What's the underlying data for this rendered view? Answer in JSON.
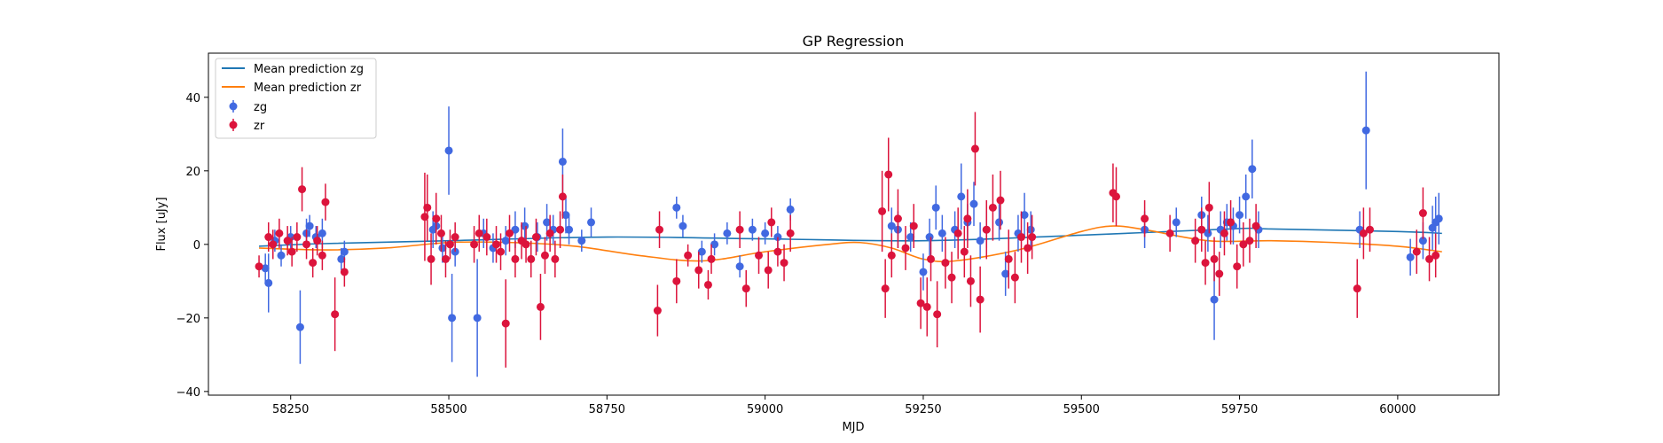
{
  "chart_data": {
    "type": "scatter",
    "title": "GP Regression",
    "xlabel": "MJD",
    "ylabel": "Flux [uJy]",
    "xlim": [
      58120,
      60160
    ],
    "ylim": [
      -41,
      52
    ],
    "xticks": [
      58250,
      58500,
      58750,
      59000,
      59250,
      59500,
      59750,
      60000
    ],
    "yticks": [
      -40,
      -20,
      0,
      20,
      40
    ],
    "grid": false,
    "legend_position": "upper-left",
    "colors": {
      "zg_line": "#1f77b4",
      "zr_line": "#ff7f0e",
      "zg_points": "#4169e1",
      "zr_points": "#dc143c"
    },
    "lines": [
      {
        "name": "Mean prediction zg",
        "x": [
          58200,
          58300,
          58500,
          58750,
          59000,
          59250,
          59500,
          59750,
          59800,
          60000,
          60070
        ],
        "y": [
          -0.5,
          0.2,
          1.0,
          2.0,
          1.5,
          1.0,
          2.5,
          4.3,
          4.2,
          3.5,
          3.0
        ]
      },
      {
        "name": "Mean prediction zr",
        "x": [
          58200,
          58300,
          58400,
          58500,
          58600,
          58700,
          58800,
          58900,
          59000,
          59100,
          59150,
          59200,
          59250,
          59300,
          59400,
          59500,
          59550,
          59600,
          59700,
          59800,
          59900,
          60000,
          60070
        ],
        "y": [
          -1.0,
          -1.5,
          -1.0,
          0.5,
          0.5,
          -0.5,
          -3.0,
          -4.5,
          -2.0,
          0.0,
          0.5,
          -1.0,
          -4.0,
          -4.5,
          -1.5,
          3.5,
          5.0,
          4.0,
          1.0,
          1.0,
          0.5,
          -0.5,
          -2.0
        ]
      }
    ],
    "series": [
      {
        "name": "zg",
        "x": [
          58210,
          58215,
          58225,
          58235,
          58250,
          58265,
          58275,
          58280,
          58290,
          58300,
          58330,
          58335,
          58475,
          58480,
          58490,
          58500,
          58505,
          58510,
          58545,
          58555,
          58570,
          58590,
          58605,
          58620,
          58640,
          58655,
          58665,
          58680,
          58685,
          58690,
          58710,
          58725,
          58860,
          58870,
          58900,
          58920,
          58940,
          58960,
          58980,
          59000,
          59020,
          59040,
          59200,
          59210,
          59230,
          59250,
          59260,
          59270,
          59280,
          59300,
          59310,
          59320,
          59330,
          59340,
          59350,
          59370,
          59380,
          59400,
          59410,
          59420,
          59600,
          59650,
          59690,
          59700,
          59710,
          59720,
          59730,
          59740,
          59750,
          59760,
          59770,
          59780,
          59940,
          59950,
          60020,
          60040,
          60055,
          60060,
          60065
        ],
        "y": [
          -6.5,
          -10.5,
          1.0,
          -3.0,
          2.0,
          -22.5,
          3.0,
          5.0,
          2.0,
          3.0,
          -4.0,
          -2.0,
          4.0,
          5.0,
          -1.0,
          25.5,
          -20.0,
          -2.0,
          -20.0,
          3.0,
          -1.0,
          1.0,
          4.0,
          5.0,
          2.0,
          6.0,
          4.0,
          22.5,
          8.0,
          4.0,
          1.0,
          6.0,
          10.0,
          5.0,
          -2.0,
          0.0,
          3.0,
          -6.0,
          4.0,
          3.0,
          2.0,
          9.5,
          5.0,
          4.0,
          2.0,
          -7.5,
          2.0,
          10.0,
          3.0,
          4.0,
          13.0,
          6.0,
          11.0,
          1.0,
          4.0,
          6.0,
          -8.0,
          3.0,
          8.0,
          4.0,
          4.0,
          6.0,
          8.0,
          3.0,
          -15.0,
          4.0,
          6.0,
          5.0,
          8.0,
          13.0,
          20.5,
          4.0,
          4.0,
          31.0,
          -3.5,
          1.0,
          4.5,
          6.0,
          7.0
        ],
        "yerr": [
          4.0,
          8.0,
          3.0,
          3.0,
          3.0,
          10.0,
          4.0,
          3.0,
          3.0,
          4.0,
          3.0,
          3.0,
          5.0,
          5.0,
          4.0,
          12.0,
          12.0,
          4.0,
          16.0,
          4.0,
          4.0,
          4.0,
          5.0,
          5.0,
          4.0,
          5.0,
          4.0,
          9.0,
          5.0,
          4.0,
          3.0,
          4.0,
          3.0,
          3.0,
          3.0,
          3.0,
          3.0,
          3.0,
          3.0,
          3.0,
          3.0,
          3.0,
          5.0,
          5.0,
          4.0,
          5.0,
          5.0,
          6.0,
          5.0,
          5.0,
          9.0,
          5.0,
          6.0,
          5.0,
          5.0,
          5.0,
          6.0,
          5.0,
          6.0,
          5.0,
          5.0,
          4.0,
          5.0,
          5.0,
          11.0,
          5.0,
          5.0,
          5.0,
          5.0,
          6.0,
          8.0,
          5.0,
          5.0,
          16.0,
          5.0,
          5.0,
          6.0,
          7.0,
          7.0
        ]
      },
      {
        "name": "zr",
        "x": [
          58200,
          58215,
          58222,
          58232,
          58245,
          58252,
          58260,
          58268,
          58275,
          58285,
          58292,
          58300,
          58305,
          58320,
          58335,
          58462,
          58466,
          58472,
          58480,
          58488,
          58495,
          58502,
          58510,
          58540,
          58548,
          58560,
          58575,
          58582,
          58590,
          58596,
          58605,
          58615,
          58622,
          58630,
          58638,
          58645,
          58652,
          58660,
          58668,
          58676,
          58680,
          58830,
          58833,
          58860,
          58878,
          58895,
          58910,
          58915,
          58960,
          58970,
          58990,
          59005,
          59010,
          59020,
          59030,
          59040,
          59185,
          59190,
          59195,
          59200,
          59210,
          59222,
          59235,
          59246,
          59256,
          59262,
          59272,
          59285,
          59295,
          59305,
          59315,
          59320,
          59325,
          59332,
          59340,
          59350,
          59360,
          59372,
          59385,
          59395,
          59405,
          59415,
          59422,
          59550,
          59555,
          59600,
          59640,
          59680,
          59690,
          59696,
          59702,
          59710,
          59718,
          59726,
          59736,
          59746,
          59756,
          59766,
          59776,
          59936,
          59946,
          59956,
          60030,
          60040,
          60050,
          60060
        ],
        "y": [
          -6.0,
          2.0,
          0.0,
          3.0,
          1.0,
          -2.0,
          2.0,
          15.0,
          0.0,
          -5.0,
          1.0,
          -3.0,
          11.5,
          -19.0,
          -7.5,
          7.5,
          10.0,
          -4.0,
          7.0,
          3.0,
          -4.0,
          0.0,
          2.0,
          0.0,
          3.0,
          2.0,
          0.0,
          -2.0,
          -21.5,
          3.0,
          -4.0,
          1.0,
          0.0,
          -4.0,
          2.0,
          -17.0,
          -3.0,
          3.0,
          -4.0,
          4.0,
          13.0,
          -18.0,
          4.0,
          -10.0,
          -3.0,
          -7.0,
          -11.0,
          -4.0,
          4.0,
          -12.0,
          -3.0,
          -7.0,
          6.0,
          -2.0,
          -5.0,
          3.0,
          9.0,
          -12.0,
          19.0,
          -3.0,
          7.0,
          -1.0,
          5.0,
          -16.0,
          -17.0,
          -4.0,
          -19.0,
          -5.0,
          -9.0,
          3.0,
          -2.0,
          7.0,
          -10.0,
          26.0,
          -15.0,
          4.0,
          10.0,
          12.0,
          -4.0,
          -9.0,
          2.0,
          -1.0,
          2.0,
          14.0,
          13.0,
          7.0,
          3.0,
          1.0,
          4.0,
          -5.0,
          10.0,
          -4.0,
          -8.0,
          3.0,
          6.0,
          -6.0,
          0.0,
          1.0,
          5.0,
          -12.0,
          3.0,
          4.0,
          -2.0,
          8.5,
          -4.0,
          -3.0
        ],
        "yerr": [
          3.0,
          4.0,
          4.0,
          4.0,
          4.0,
          4.0,
          4.0,
          6.0,
          4.0,
          4.0,
          4.0,
          4.0,
          5.0,
          10.0,
          4.0,
          12.0,
          9.0,
          7.0,
          7.0,
          5.0,
          5.0,
          4.0,
          4.0,
          5.0,
          5.0,
          5.0,
          5.0,
          5.0,
          12.0,
          5.0,
          5.0,
          5.0,
          5.0,
          5.0,
          5.0,
          9.0,
          5.0,
          5.0,
          5.0,
          5.0,
          6.0,
          7.0,
          5.0,
          6.0,
          3.0,
          5.0,
          4.0,
          4.0,
          5.0,
          5.0,
          5.0,
          5.0,
          4.0,
          4.0,
          5.0,
          5.0,
          11.0,
          8.0,
          10.0,
          6.0,
          8.0,
          6.0,
          6.0,
          7.0,
          8.0,
          6.0,
          9.0,
          7.0,
          7.0,
          7.0,
          7.0,
          8.0,
          7.0,
          10.0,
          9.0,
          8.0,
          9.0,
          8.0,
          8.0,
          7.0,
          7.0,
          7.0,
          6.0,
          8.0,
          8.0,
          5.0,
          5.0,
          6.0,
          6.0,
          6.0,
          7.0,
          6.0,
          6.0,
          6.0,
          6.0,
          6.0,
          6.0,
          6.0,
          6.0,
          8.0,
          7.0,
          6.0,
          6.0,
          7.0,
          6.0,
          6.0
        ]
      }
    ]
  }
}
